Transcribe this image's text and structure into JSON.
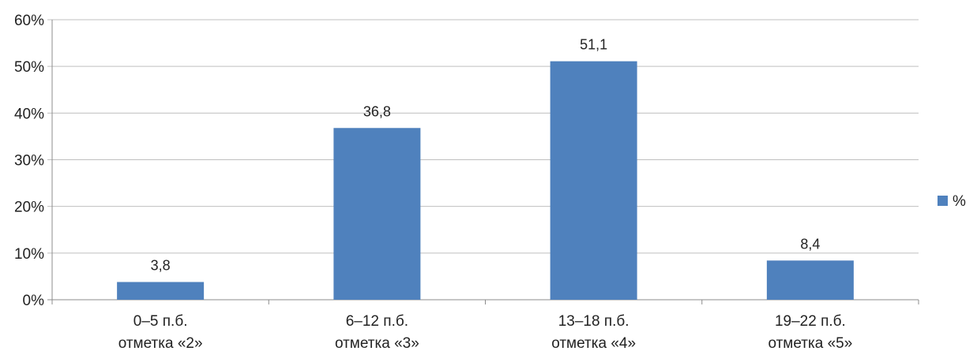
{
  "chart_data": {
    "type": "bar",
    "categories": [
      [
        "0–5 п.б.",
        "отметка «2»"
      ],
      [
        "6–12 п.б.",
        "отметка «3»"
      ],
      [
        "13–18 п.б.",
        "отметка «4»"
      ],
      [
        "19–22 п.б.",
        "отметка «5»"
      ]
    ],
    "series": [
      {
        "name": "%",
        "values": [
          3.8,
          36.8,
          51.1,
          8.4
        ],
        "labels": [
          "3,8",
          "36,8",
          "51,1",
          "8,4"
        ]
      }
    ],
    "yticks": [
      "0%",
      "10%",
      "20%",
      "30%",
      "40%",
      "50%",
      "60%"
    ],
    "ylim": [
      0,
      60
    ],
    "grid": true,
    "legend_position": "right",
    "colors": {
      "bar": "#4f81bd",
      "grid": "#bfbfbf",
      "axis": "#8c8c8c"
    }
  }
}
